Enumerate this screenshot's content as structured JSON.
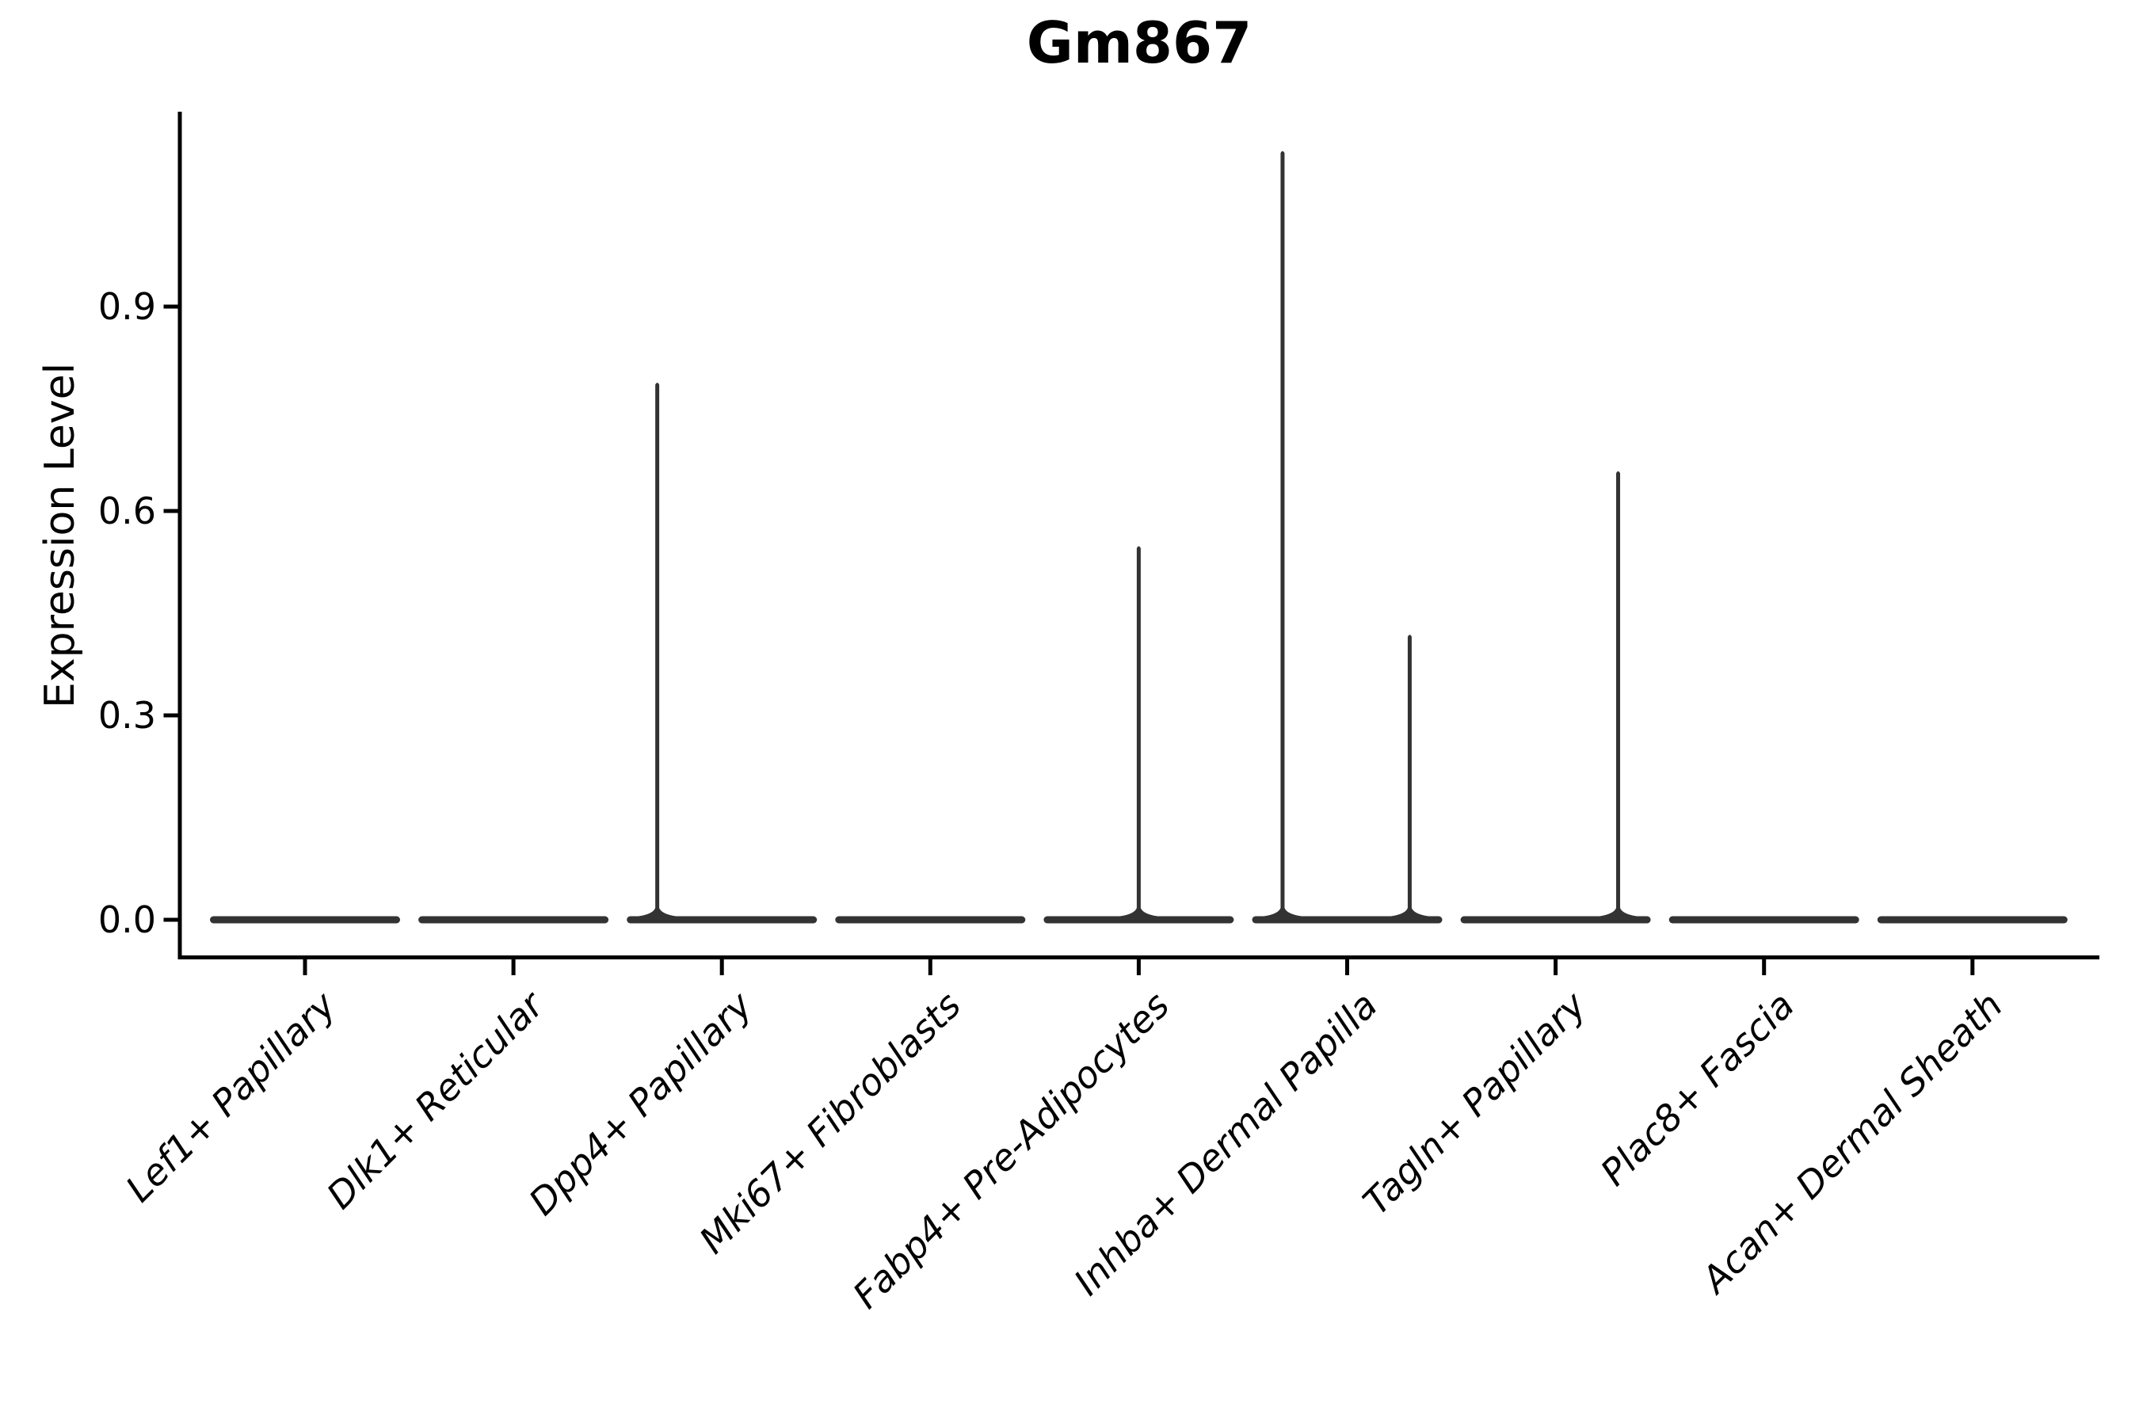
{
  "figure": {
    "background": "#ffffff"
  },
  "chart_data": {
    "type": "violin",
    "title": "Gm867",
    "xlabel": "",
    "ylabel": "Expression Level",
    "categories": [
      "Lef1+ Papillary",
      "Dlk1+ Reticular",
      "Dpp4+ Papillary",
      "Mki67+ Fibroblasts",
      "Fabp4+ Pre-Adipocytes",
      "Inhba+ Dermal Papilla",
      "Tagln+ Papillary",
      "Plac8+ Fascia",
      "Acan+ Dermal Sheath"
    ],
    "yticks": [
      0.0,
      0.3,
      0.6,
      0.9
    ],
    "ytick_labels": [
      "0.0",
      "0.3",
      "0.6",
      "0.9"
    ],
    "ylim": [
      -0.06,
      1.19
    ],
    "grid": false,
    "legend_position": "none",
    "axis_color": "#000000",
    "violin_color": "#333333",
    "series": [
      {
        "name": "Lef1+ Papillary",
        "baseline_value": 0,
        "max_value": 0,
        "spikes": []
      },
      {
        "name": "Dlk1+ Reticular",
        "baseline_value": 0,
        "max_value": 0,
        "spikes": []
      },
      {
        "name": "Dpp4+ Papillary",
        "baseline_value": 0,
        "max_value": 0.79,
        "spikes": [
          {
            "value": 0.79,
            "offset_frac": -0.31
          }
        ]
      },
      {
        "name": "Mki67+ Fibroblasts",
        "baseline_value": 0,
        "max_value": 0,
        "spikes": []
      },
      {
        "name": "Fabp4+ Pre-Adipocytes",
        "baseline_value": 0,
        "max_value": 0.55,
        "spikes": [
          {
            "value": 0.55,
            "offset_frac": 0.0
          }
        ]
      },
      {
        "name": "Inhba+ Dermal Papilla",
        "baseline_value": 0,
        "max_value": 1.13,
        "spikes": [
          {
            "value": 1.13,
            "offset_frac": -0.31
          },
          {
            "value": 0.42,
            "offset_frac": 0.3
          }
        ]
      },
      {
        "name": "Tagln+ Papillary",
        "baseline_value": 0,
        "max_value": 0.66,
        "spikes": [
          {
            "value": 0.66,
            "offset_frac": 0.3
          }
        ]
      },
      {
        "name": "Plac8+ Fascia",
        "baseline_value": 0,
        "max_value": 0,
        "spikes": []
      },
      {
        "name": "Acan+ Dermal Sheath",
        "baseline_value": 0,
        "max_value": 0,
        "spikes": []
      }
    ]
  }
}
